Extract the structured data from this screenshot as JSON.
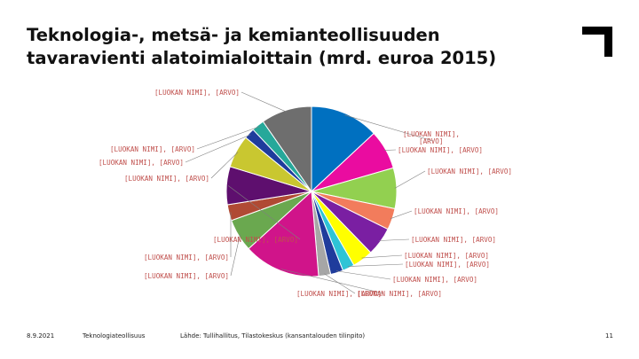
{
  "slide": {
    "title_line1": "Teknologia-, metsä- ja kemianteollisuuden",
    "title_line2": "tavaravienti alatoimialoittain (mrd. euroa 2015)"
  },
  "footer": {
    "date": "8.9.2021",
    "organization": "Teknologiateollisuus",
    "source": "Lähde: Tullihallitus, Tilastokeskus (kansantalouden tilinpito)",
    "page_number": "11"
  },
  "chart_data": {
    "type": "pie",
    "title": "",
    "label_color": "#c0504d",
    "slices": [
      {
        "label": "[LUOKAN NIMI], [ARVO]",
        "value": 10.3,
        "color": "#0070c0"
      },
      {
        "label": "[LUOKAN NIMI], [ARVO]",
        "value": 5.9,
        "color": "#ea0ca0"
      },
      {
        "label": "[LUOKAN NIMI], [ARVO]",
        "value": 6.1,
        "color": "#92d050"
      },
      {
        "label": "[LUOKAN NIMI], [ARVO]",
        "value": 3.2,
        "color": "#f27c5c"
      },
      {
        "label": "[LUOKAN NIMI], [ARVO]",
        "value": 4.3,
        "color": "#7a1fa2"
      },
      {
        "label": "[LUOKAN NIMI], [ARVO]",
        "value": 3.1,
        "color": "#ffff00"
      },
      {
        "label": "[LUOKAN NIMI], [ARVO]",
        "value": 1.8,
        "color": "#2ec4d6"
      },
      {
        "label": "[LUOKAN NIMI], [ARVO]",
        "value": 1.9,
        "color": "#1f3c9c"
      },
      {
        "label": "[LUOKAN NIMI], [ARVO]",
        "value": 1.8,
        "color": "#a6a6a6"
      },
      {
        "label": "[LUOKAN NIMI], [ARVO]",
        "value": 11.5,
        "color": "#d0148a"
      },
      {
        "label": "[LUOKAN NIMI], [ARVO]",
        "value": 4.9,
        "color": "#6aa84f"
      },
      {
        "label": "[LUOKAN NIMI], [ARVO]",
        "value": 2.4,
        "color": "#b04a34"
      },
      {
        "label": "[LUOKAN NIMI], [ARVO]",
        "value": 5.7,
        "color": "#5e0f6e"
      },
      {
        "label": "[LUOKAN NIMI], [ARVO]",
        "value": 4.9,
        "color": "#c9c730"
      },
      {
        "label": "[LUOKAN NIMI], [ARVO]",
        "value": 1.6,
        "color": "#1f3c9c"
      },
      {
        "label": "[LUOKAN NIMI], [ARVO]",
        "value": 1.9,
        "color": "#26a89a"
      },
      {
        "label": "[LUOKAN NIMI], [ARVO]",
        "value": 7.6,
        "color": "#6e6e6e"
      }
    ]
  }
}
